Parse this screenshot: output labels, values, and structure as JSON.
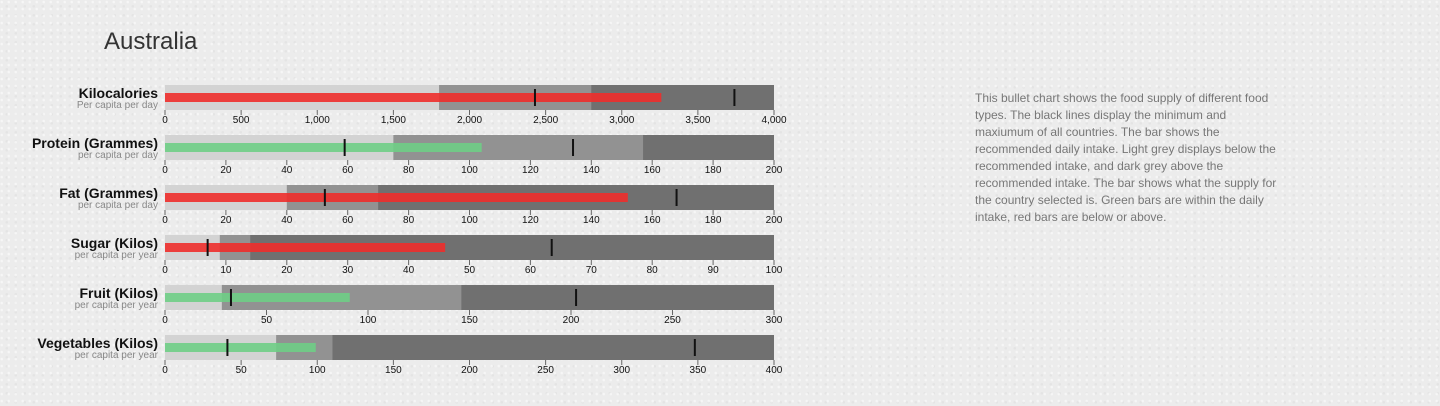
{
  "page": {
    "title": "Australia",
    "description": "This bullet chart shows the food supply of different food types. The black lines display the minimum and maxiumum of all countries. The bar shows the recommended daily intake. Light grey displays below the recommended intake, and dark grey above the recommended intake. The bar shows what the supply for the country selected is. Green bars are within the daily intake, red bars are below or above."
  },
  "colors": {
    "range_light": "#d3d3d3",
    "range_mid": "#929292",
    "range_dark": "#707070",
    "within": "#6fce86",
    "outside": "#ee2e2b",
    "marker": "#111111"
  },
  "chart_data": {
    "type": "bullet",
    "rows": [
      {
        "title": "Kilocalories",
        "subtitle": "Per capita per day",
        "max": 4000,
        "ticks": [
          0,
          500,
          1000,
          1500,
          2000,
          2500,
          3000,
          3500,
          4000
        ],
        "tick_labels": [
          "0",
          "500",
          "1,000",
          "1,500",
          "2,000",
          "2,500",
          "3,000",
          "3,500",
          "4,000"
        ],
        "ranges": [
          1800,
          2800,
          4000
        ],
        "value": 3260,
        "status": "outside",
        "markers": [
          2430,
          3740
        ]
      },
      {
        "title": "Protein (Grammes)",
        "subtitle": "per capita per day",
        "max": 200,
        "ticks": [
          0,
          20,
          40,
          60,
          80,
          100,
          120,
          140,
          160,
          180,
          200
        ],
        "tick_labels": [
          "0",
          "20",
          "40",
          "60",
          "80",
          "100",
          "120",
          "140",
          "160",
          "180",
          "200"
        ],
        "ranges": [
          75,
          157,
          200
        ],
        "value": 104,
        "status": "within",
        "markers": [
          59,
          134
        ]
      },
      {
        "title": "Fat (Grammes)",
        "subtitle": "per capita per day",
        "max": 200,
        "ticks": [
          0,
          20,
          40,
          60,
          80,
          100,
          120,
          140,
          160,
          180,
          200
        ],
        "tick_labels": [
          "0",
          "20",
          "40",
          "60",
          "80",
          "100",
          "120",
          "140",
          "160",
          "180",
          "200"
        ],
        "ranges": [
          40,
          70,
          200
        ],
        "value": 152,
        "status": "outside",
        "markers": [
          52.5,
          168
        ]
      },
      {
        "title": "Sugar (Kilos)",
        "subtitle": "per capita per year",
        "max": 100,
        "ticks": [
          0,
          10,
          20,
          30,
          40,
          50,
          60,
          70,
          80,
          90,
          100
        ],
        "tick_labels": [
          "0",
          "10",
          "20",
          "30",
          "40",
          "50",
          "60",
          "70",
          "80",
          "90",
          "100"
        ],
        "ranges": [
          9,
          14,
          100
        ],
        "value": 46,
        "status": "outside",
        "markers": [
          7,
          63.5
        ]
      },
      {
        "title": "Fruit (Kilos)",
        "subtitle": "per capita per year",
        "max": 300,
        "ticks": [
          0,
          50,
          100,
          150,
          200,
          250,
          300
        ],
        "tick_labels": [
          "0",
          "50",
          "100",
          "150",
          "200",
          "250",
          "300"
        ],
        "ranges": [
          28,
          146,
          300
        ],
        "value": 91,
        "status": "within",
        "markers": [
          32.5,
          202.5
        ]
      },
      {
        "title": "Vegetables (Kilos)",
        "subtitle": "per capita per year",
        "max": 400,
        "ticks": [
          0,
          50,
          100,
          150,
          200,
          250,
          300,
          350,
          400
        ],
        "tick_labels": [
          "0",
          "50",
          "100",
          "150",
          "200",
          "250",
          "300",
          "350",
          "400"
        ],
        "ranges": [
          73,
          110,
          400
        ],
        "value": 99,
        "status": "within",
        "markers": [
          41,
          348
        ]
      }
    ]
  }
}
